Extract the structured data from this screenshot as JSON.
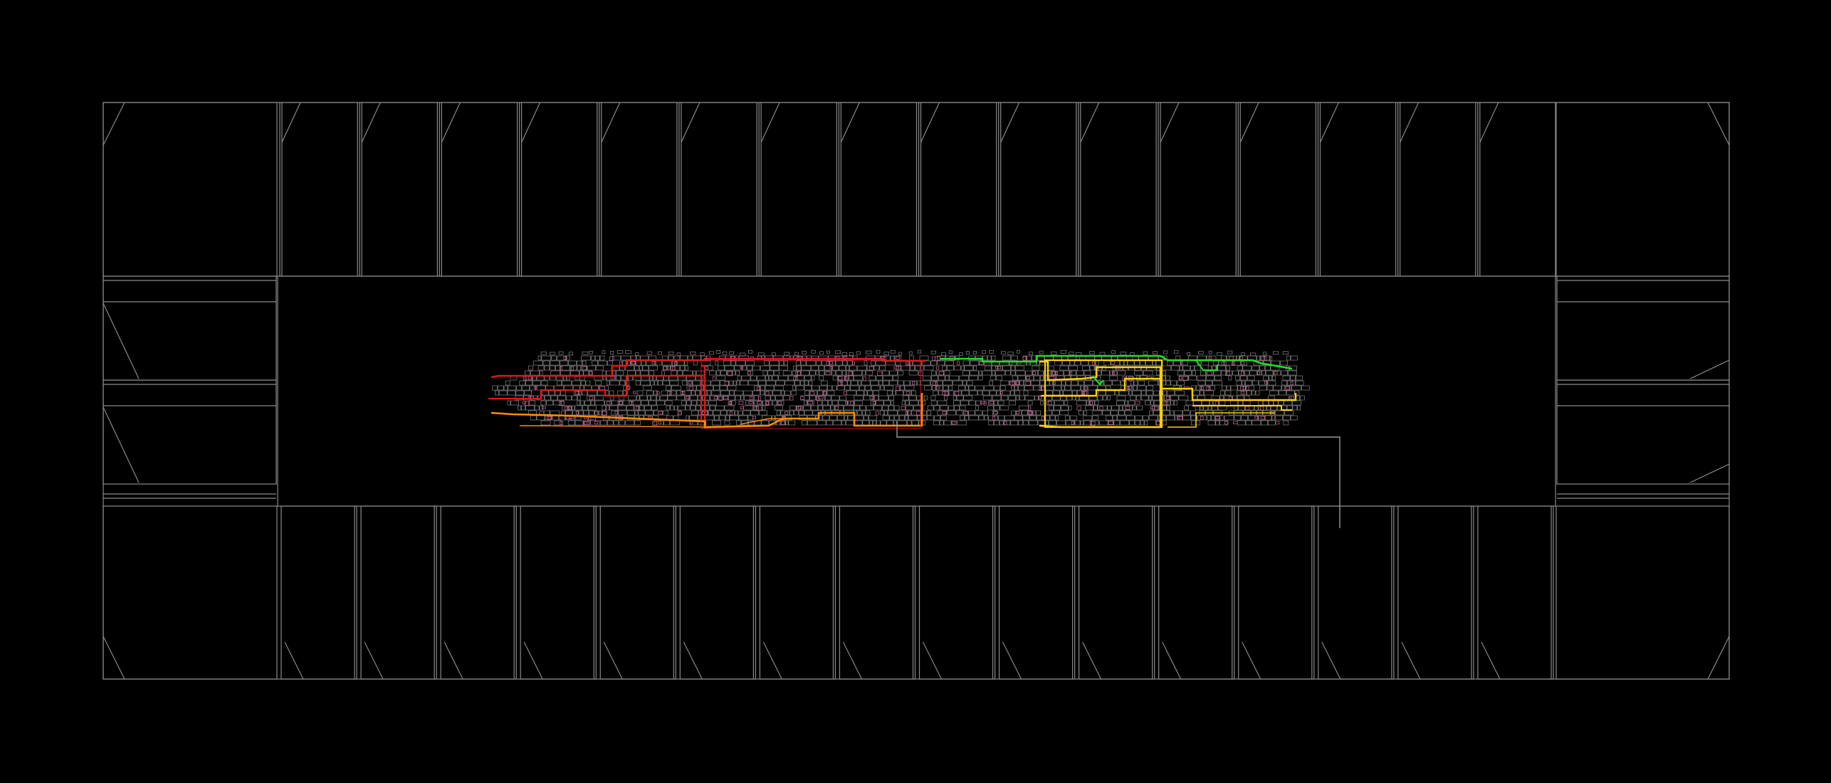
{
  "view": {
    "background": "#000000",
    "outline_color": "#8a8a8a",
    "cell_color": "#9a9a9a",
    "pin_color": "#d06a9a"
  },
  "io_ring": {
    "top_pads": 16,
    "bottom_pads": 16,
    "left_pads": 2,
    "right_pads": 2
  },
  "core": {
    "standard_cell_rows": 14,
    "routing_groups": [
      {
        "color": "#e01818"
      },
      {
        "color": "#ff8c00"
      },
      {
        "color": "#ffd000"
      },
      {
        "color": "#20e020"
      }
    ]
  }
}
